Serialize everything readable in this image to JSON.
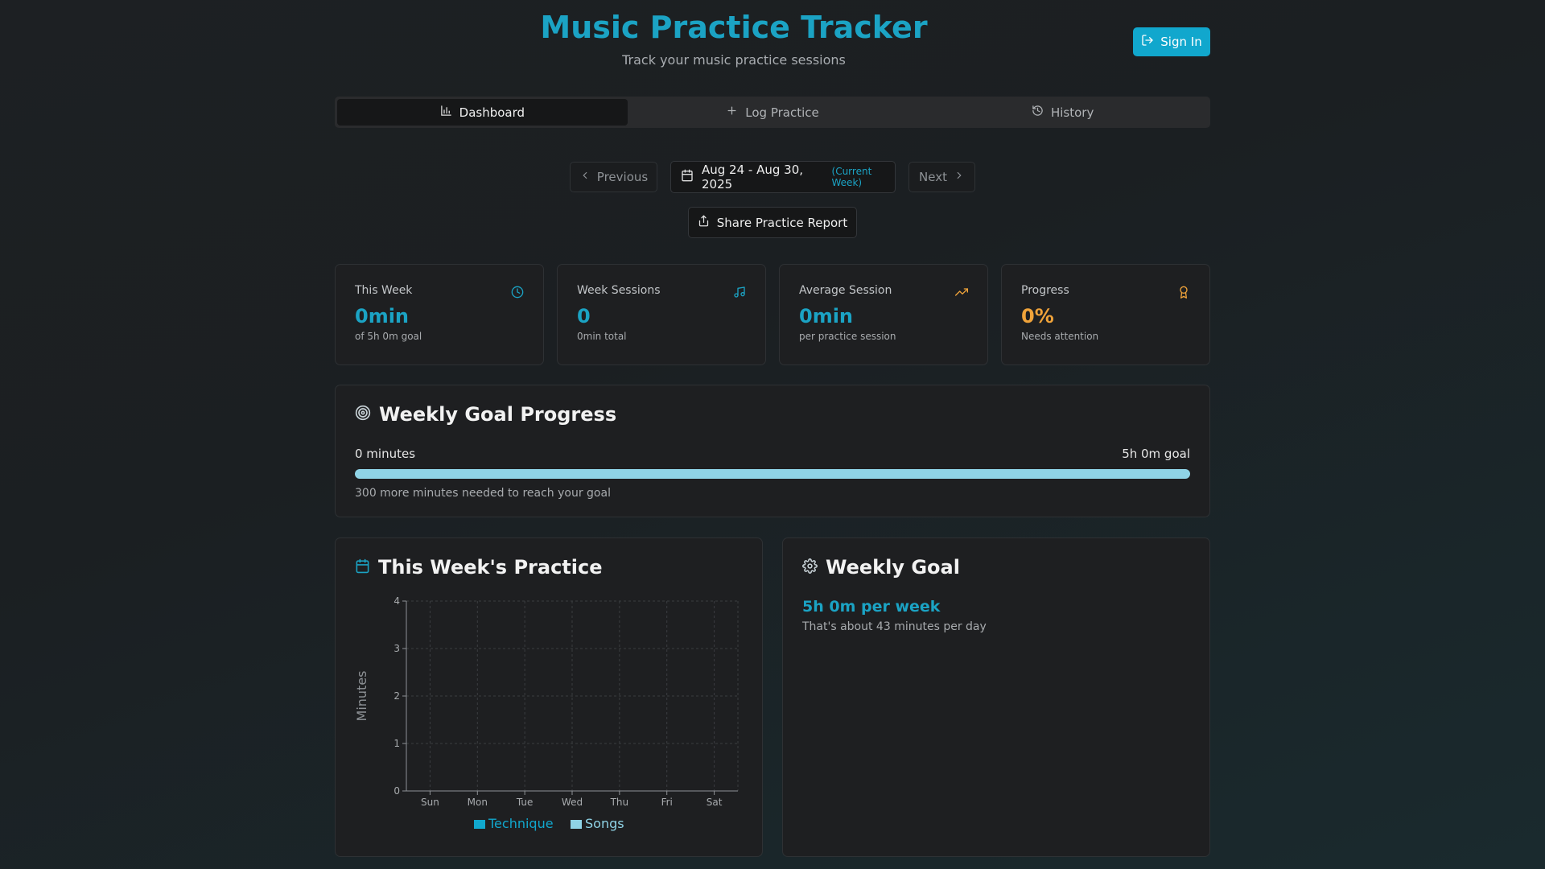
{
  "header": {
    "title": "Music Practice Tracker",
    "subtitle": "Track your music practice sessions",
    "sign_in_label": "Sign In"
  },
  "tabs": [
    {
      "label": "Dashboard",
      "icon": "bar-chart-icon",
      "active": true
    },
    {
      "label": "Log Practice",
      "icon": "plus-icon",
      "active": false
    },
    {
      "label": "History",
      "icon": "history-icon",
      "active": false
    }
  ],
  "week_nav": {
    "previous_label": "Previous",
    "next_label": "Next",
    "range": "Aug 24 - Aug 30, 2025",
    "current_tag": "(Current Week)",
    "share_label": "Share Practice Report"
  },
  "stats": [
    {
      "label": "This Week",
      "value": "0min",
      "sub": "of 5h 0m goal",
      "icon": "clock-icon",
      "color": "#1ba3c4"
    },
    {
      "label": "Week Sessions",
      "value": "0",
      "sub": "0min total",
      "icon": "music-note-icon",
      "color": "#1ba3c4"
    },
    {
      "label": "Average Session",
      "value": "0min",
      "sub": "per practice session",
      "icon": "trending-up-icon",
      "color": "#1ba3c4"
    },
    {
      "label": "Progress",
      "value": "0%",
      "sub": "Needs attention",
      "icon": "award-icon",
      "color": "#f0a33a"
    }
  ],
  "goal_progress": {
    "title": "Weekly Goal Progress",
    "left_label": "0 minutes",
    "right_label": "5h 0m goal",
    "progress_fraction": 0,
    "note": "300 more minutes needed to reach your goal"
  },
  "week_practice": {
    "title": "This Week's Practice"
  },
  "weekly_goal": {
    "title": "Weekly Goal",
    "value": "5h 0m per week",
    "note": "That's about 43 minutes per day"
  },
  "colors": {
    "accent": "#1ba3c4",
    "technique": "#11a7cd",
    "songs": "#8fd3e6",
    "warning": "#f0a33a"
  },
  "chart_data": {
    "type": "bar",
    "categories": [
      "Sun",
      "Mon",
      "Tue",
      "Wed",
      "Thu",
      "Fri",
      "Sat"
    ],
    "series": [
      {
        "name": "Technique",
        "values": [
          0,
          0,
          0,
          0,
          0,
          0,
          0
        ]
      },
      {
        "name": "Songs",
        "values": [
          0,
          0,
          0,
          0,
          0,
          0,
          0
        ]
      }
    ],
    "yticks": [
      "0",
      "1",
      "2",
      "3",
      "4"
    ],
    "ylim": [
      0,
      4
    ],
    "ylabel": "Minutes",
    "xlabel": "",
    "grid": true,
    "stacked": true,
    "legend": "bottom"
  }
}
